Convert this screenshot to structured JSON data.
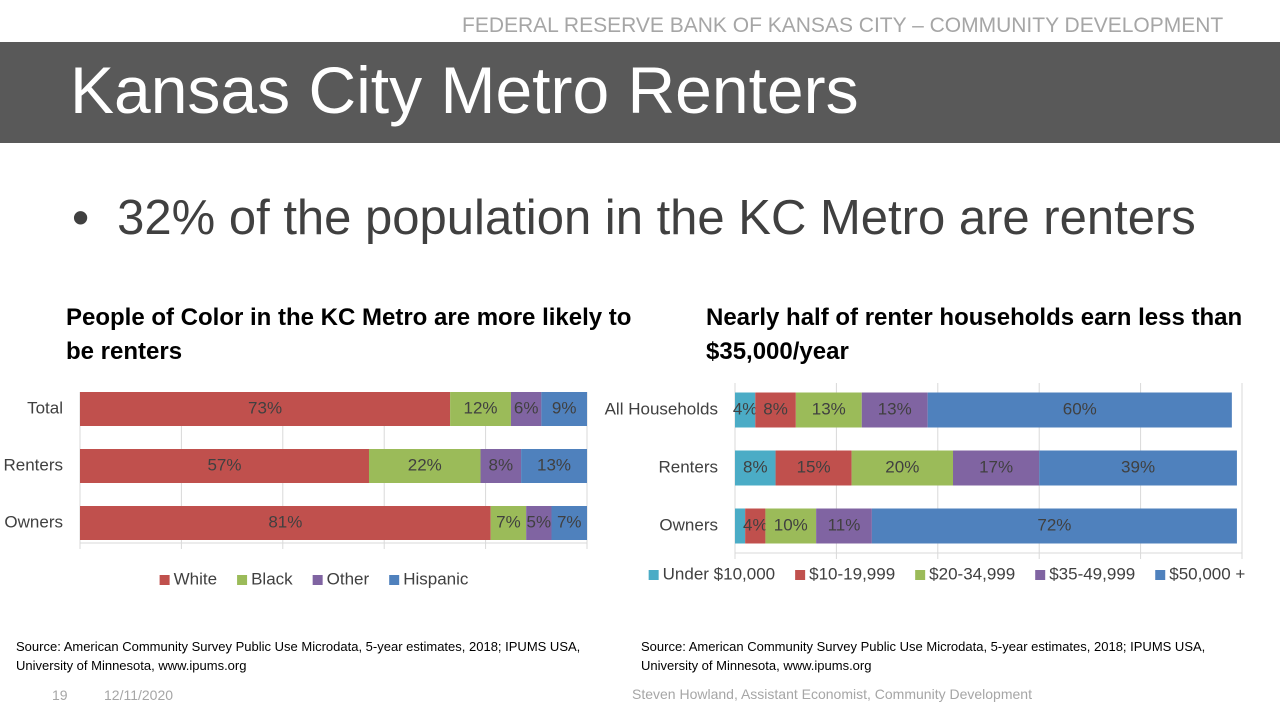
{
  "header": {
    "org": "FEDERAL RESERVE BANK OF KANSAS CITY – COMMUNITY DEVELOPMENT",
    "title": "Kansas City Metro Renters"
  },
  "bullet": "32% of the population in the KC Metro are renters",
  "chart_data": [
    {
      "type": "stacked_bar_horizontal",
      "title": "People of Color in the KC Metro are more likely to be renters",
      "categories": [
        "Total",
        "Renters",
        "Owners"
      ],
      "series": [
        {
          "name": "White",
          "color": "#c0504d",
          "values": [
            73,
            57,
            81
          ],
          "value_labels": [
            "73%",
            "57%",
            "81%"
          ]
        },
        {
          "name": "Black",
          "color": "#9bbb59",
          "values": [
            12,
            22,
            7
          ],
          "value_labels": [
            "12%",
            "22%",
            "7%"
          ]
        },
        {
          "name": "Other",
          "color": "#8064a2",
          "values": [
            6,
            8,
            5
          ],
          "value_labels": [
            "6%",
            "8%",
            "5%"
          ]
        },
        {
          "name": "Hispanic",
          "color": "#4f81bd",
          "values": [
            9,
            13,
            7
          ],
          "value_labels": [
            "9%",
            "13%",
            "7%"
          ]
        }
      ],
      "xlim": [
        0,
        100
      ],
      "xticks": [
        0,
        20,
        40,
        60,
        80,
        100
      ],
      "grid": true,
      "legend": "bottom"
    },
    {
      "type": "stacked_bar_horizontal",
      "title": "Nearly half of renter households earn less than $35,000/year",
      "categories": [
        "All Households",
        "Renters",
        "Owners"
      ],
      "series": [
        {
          "name": "Under $10,000",
          "color": "#4bacc6",
          "values": [
            4,
            8,
            2
          ],
          "value_labels": [
            "4%",
            "8%",
            null
          ]
        },
        {
          "name": "$10-19,999",
          "color": "#c0504d",
          "values": [
            8,
            15,
            4
          ],
          "value_labels": [
            "8%",
            "15%",
            "4%"
          ]
        },
        {
          "name": "$20-34,999",
          "color": "#9bbb59",
          "values": [
            13,
            20,
            10
          ],
          "value_labels": [
            "13%",
            "20%",
            "10%"
          ]
        },
        {
          "name": "$35-49,999",
          "color": "#8064a2",
          "values": [
            13,
            17,
            11
          ],
          "value_labels": [
            "13%",
            "17%",
            "11%"
          ]
        },
        {
          "name": "$50,000 +",
          "color": "#4f81bd",
          "values": [
            60,
            39,
            72
          ],
          "value_labels": [
            "60%",
            "39%",
            "72%"
          ]
        }
      ],
      "xlim": [
        0,
        100
      ],
      "xticks": [
        0,
        20,
        40,
        60,
        80,
        100
      ],
      "grid": true,
      "legend": "bottom"
    }
  ],
  "sources": [
    "Source: American Community Survey Public Use Microdata, 5-year estimates, 2018; IPUMS USA, University of Minnesota, www.ipums.org",
    "Source: American Community Survey Public Use Microdata, 5-year estimates, 2018; IPUMS USA, University of Minnesota, www.ipums.org"
  ],
  "footer": {
    "page": "19",
    "date": "12/11/2020",
    "author": "Steven Howland, Assistant Economist, Community Development"
  }
}
